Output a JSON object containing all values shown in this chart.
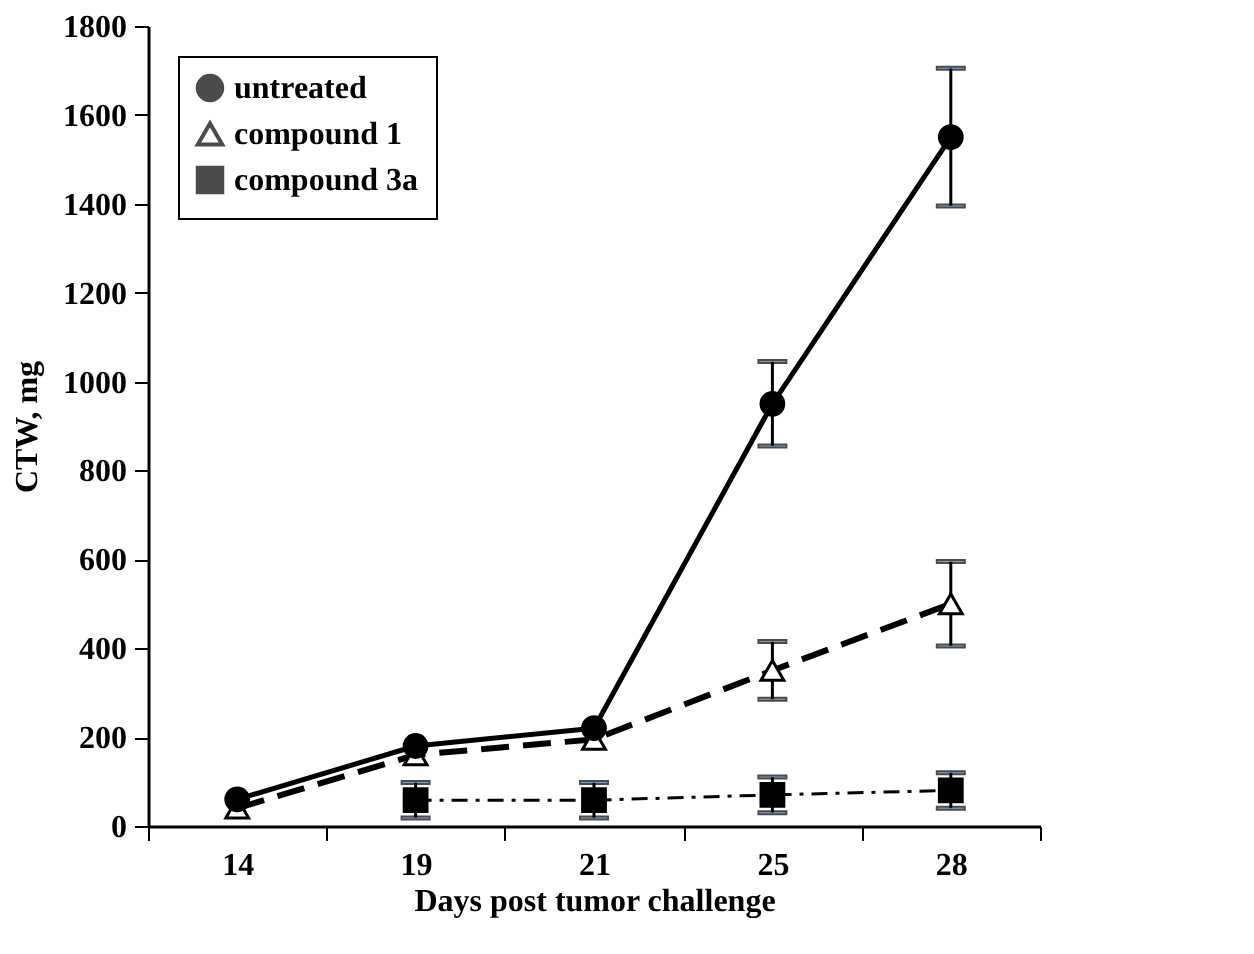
{
  "chart_data": {
    "type": "line",
    "xlabel": "Days post tumor challenge",
    "ylabel": "CTW, mg",
    "categories": [
      "14",
      "19",
      "21",
      "25",
      "28"
    ],
    "ylim": [
      0,
      1800
    ],
    "yticks": [
      0,
      200,
      400,
      600,
      800,
      1000,
      1200,
      1400,
      1600,
      1800
    ],
    "grid": false,
    "legend": "top left",
    "series": [
      {
        "name": "untreated",
        "color": "#000000",
        "marker": "circle",
        "line_style": "solid",
        "values": [
          60,
          180,
          220,
          950,
          1550
        ],
        "errors": [
          null,
          null,
          null,
          95,
          155
        ]
      },
      {
        "name": "compound 1",
        "color": "#000000",
        "marker": "triangle",
        "line_style": "dashed",
        "values": [
          40,
          160,
          195,
          350,
          500
        ],
        "errors": [
          null,
          null,
          null,
          65,
          95
        ]
      },
      {
        "name": "compound 3a",
        "color": "#000000",
        "marker": "square",
        "line_style": "dashdot",
        "values": [
          null,
          58,
          58,
          70,
          80
        ],
        "errors": [
          null,
          40,
          40,
          40,
          40
        ]
      }
    ]
  }
}
